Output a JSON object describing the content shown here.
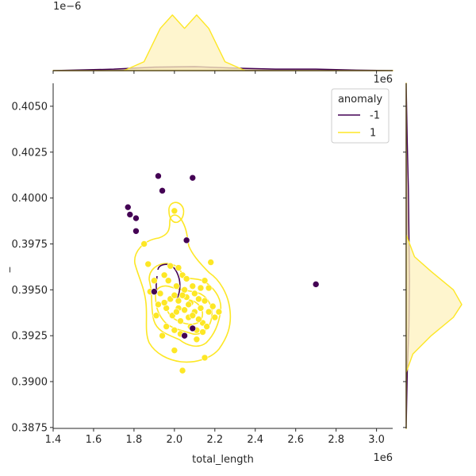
{
  "chart_data": {
    "type": "scatter",
    "title": "",
    "xlabel": "total_length",
    "ylabel": "_",
    "x_offset_label": "1e6",
    "y_offset_label": "1e6",
    "top_offset_label": "1e−6",
    "xlim": [
      1.4,
      3.08
    ],
    "ylim": [
      0.38745,
      0.40625
    ],
    "x_ticks": [
      "1.4",
      "1.6",
      "1.8",
      "2.0",
      "2.2",
      "2.4",
      "2.6",
      "2.8",
      "3.0"
    ],
    "x_tick_values": [
      1.4,
      1.6,
      1.8,
      2.0,
      2.2,
      2.4,
      2.6,
      2.8,
      3.0
    ],
    "y_ticks": [
      "0.3875",
      "0.3900",
      "0.3925",
      "0.3950",
      "0.3975",
      "0.4000",
      "0.4025",
      "0.4050"
    ],
    "y_tick_values": [
      0.3875,
      0.39,
      0.3925,
      0.395,
      0.3975,
      0.4,
      0.4025,
      0.405
    ],
    "grid": false,
    "legend": {
      "title": "anomaly",
      "position": "top-right",
      "entries": [
        {
          "label": "-1",
          "color": "#440154"
        },
        {
          "label": "1",
          "color": "#fde725"
        }
      ]
    },
    "series": [
      {
        "name": "-1",
        "color": "#440154",
        "points": [
          [
            1.92,
            0.4012
          ],
          [
            2.09,
            0.4011
          ],
          [
            1.94,
            0.4004
          ],
          [
            1.77,
            0.3995
          ],
          [
            1.78,
            0.3991
          ],
          [
            1.81,
            0.3989
          ],
          [
            1.81,
            0.3982
          ],
          [
            2.06,
            0.3977
          ],
          [
            2.7,
            0.3953
          ],
          [
            1.9,
            0.3949
          ],
          [
            2.09,
            0.3929
          ],
          [
            2.05,
            0.3925
          ]
        ]
      },
      {
        "name": "1",
        "color": "#fde725",
        "points": [
          [
            2.0,
            0.3993
          ],
          [
            2.17,
            0.3951
          ],
          [
            2.14,
            0.3932
          ],
          [
            2.04,
            0.3906
          ],
          [
            2.15,
            0.3913
          ],
          [
            2.0,
            0.3917
          ],
          [
            2.22,
            0.3938
          ],
          [
            1.87,
            0.3964
          ],
          [
            1.85,
            0.3975
          ],
          [
            2.18,
            0.3965
          ],
          [
            1.88,
            0.3949
          ],
          [
            1.91,
            0.3936
          ],
          [
            1.95,
            0.3958
          ],
          [
            1.98,
            0.3945
          ],
          [
            2.02,
            0.394
          ],
          [
            2.05,
            0.395
          ],
          [
            2.08,
            0.3943
          ],
          [
            2.1,
            0.3938
          ],
          [
            2.12,
            0.3945
          ],
          [
            1.96,
            0.393
          ],
          [
            2.0,
            0.3928
          ],
          [
            2.03,
            0.3933
          ],
          [
            2.07,
            0.3935
          ],
          [
            2.11,
            0.3928
          ],
          [
            2.13,
            0.394
          ],
          [
            2.15,
            0.3944
          ],
          [
            2.19,
            0.3941
          ],
          [
            1.93,
            0.3948
          ],
          [
            1.97,
            0.3955
          ],
          [
            2.01,
            0.3952
          ],
          [
            2.04,
            0.3958
          ],
          [
            2.06,
            0.3946
          ],
          [
            2.09,
            0.3952
          ],
          [
            2.12,
            0.3934
          ],
          [
            2.16,
            0.393
          ],
          [
            2.2,
            0.3935
          ],
          [
            1.94,
            0.3925
          ],
          [
            1.99,
            0.3936
          ],
          [
            2.02,
            0.3944
          ],
          [
            2.05,
            0.3939
          ],
          [
            2.08,
            0.393
          ],
          [
            2.11,
            0.3923
          ],
          [
            2.14,
            0.3927
          ],
          [
            1.92,
            0.3942
          ],
          [
            1.96,
            0.394
          ],
          [
            2.0,
            0.3947
          ],
          [
            2.03,
            0.3926
          ],
          [
            2.07,
            0.3942
          ],
          [
            2.1,
            0.3948
          ],
          [
            2.13,
            0.3951
          ],
          [
            2.17,
            0.3938
          ],
          [
            1.9,
            0.3955
          ],
          [
            1.98,
            0.3963
          ],
          [
            2.02,
            0.3962
          ],
          [
            2.06,
            0.3956
          ],
          [
            2.15,
            0.3955
          ],
          [
            2.01,
            0.3938
          ],
          [
            2.04,
            0.3947
          ],
          [
            2.09,
            0.3936
          ],
          [
            1.95,
            0.3943
          ]
        ]
      }
    ],
    "marginal_top": {
      "type": "area",
      "description": "kde of total_length per anomaly class",
      "series": [
        {
          "name": "-1",
          "color": "#440154",
          "fill": "#d4b8a0",
          "x": [
            1.4,
            1.7,
            1.9,
            2.1,
            2.3,
            2.5,
            2.7,
            2.9,
            3.08
          ],
          "y": [
            0.0,
            0.03,
            0.07,
            0.08,
            0.05,
            0.03,
            0.03,
            0.01,
            0.0
          ]
        },
        {
          "name": "1",
          "color": "#fde725",
          "fill": "#fdf2bd",
          "x": [
            1.4,
            1.75,
            1.85,
            1.93,
            1.99,
            2.05,
            2.11,
            2.17,
            2.25,
            2.35,
            3.08
          ],
          "y": [
            0.0,
            0.0,
            0.18,
            0.85,
            1.12,
            0.85,
            1.12,
            0.85,
            0.18,
            0.0,
            0.0
          ]
        }
      ]
    },
    "marginal_right": {
      "type": "area",
      "description": "kde of _ per anomaly class",
      "series": [
        {
          "name": "-1",
          "color": "#440154",
          "fill": "#d4b8a0",
          "y": [
            0.38745,
            0.3905,
            0.393,
            0.3955,
            0.398,
            0.4005,
            0.403,
            0.40625
          ],
          "x": [
            0.0,
            0.02,
            0.05,
            0.06,
            0.05,
            0.04,
            0.02,
            0.0
          ]
        },
        {
          "name": "1",
          "color": "#fde725",
          "fill": "#fdf2bd",
          "y": [
            0.38745,
            0.3905,
            0.3915,
            0.3925,
            0.3935,
            0.3942,
            0.395,
            0.396,
            0.3968,
            0.398,
            0.40625
          ],
          "x": [
            0.0,
            0.0,
            0.12,
            0.45,
            0.85,
            1.0,
            0.85,
            0.45,
            0.15,
            0.0,
            0.0
          ]
        }
      ]
    }
  }
}
